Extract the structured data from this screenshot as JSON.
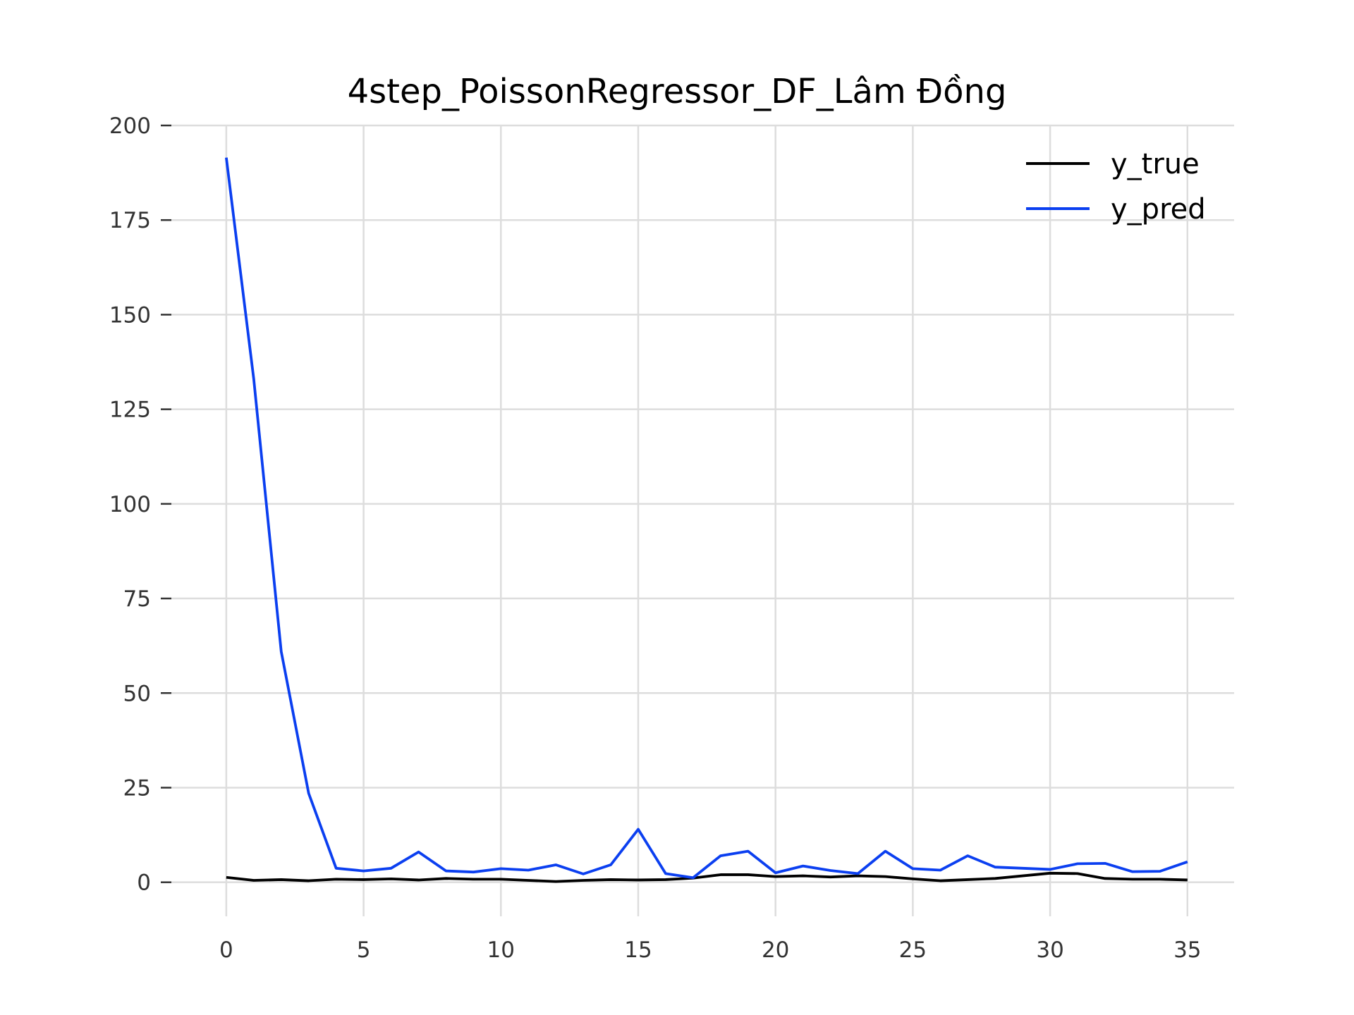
{
  "chart_data": {
    "type": "line",
    "title": "4step_PoissonRegressor_DF_Lâm Đồng",
    "xlabel": "",
    "ylabel": "",
    "xlim": [
      -2,
      36.7
    ],
    "ylim": [
      -9,
      200
    ],
    "xticks": [
      0,
      5,
      10,
      15,
      20,
      25,
      30,
      35
    ],
    "yticks": [
      0,
      25,
      50,
      75,
      100,
      125,
      150,
      175,
      200
    ],
    "grid": true,
    "legend_position": "top-right",
    "x": [
      0,
      1,
      2,
      3,
      4,
      5,
      6,
      7,
      8,
      9,
      10,
      11,
      12,
      13,
      14,
      15,
      16,
      17,
      18,
      19,
      20,
      21,
      22,
      23,
      24,
      25,
      26,
      27,
      28,
      29,
      30,
      31,
      32,
      33,
      34,
      35
    ],
    "series": [
      {
        "name": "y_true",
        "color": "#000000",
        "values": [
          1.3,
          0.5,
          0.7,
          0.4,
          0.8,
          0.7,
          0.9,
          0.6,
          1.0,
          0.8,
          0.8,
          0.5,
          0.2,
          0.5,
          0.7,
          0.6,
          0.7,
          1.1,
          2.0,
          2.0,
          1.5,
          1.7,
          1.4,
          1.7,
          1.5,
          0.9,
          0.4,
          0.7,
          1.0,
          1.7,
          2.4,
          2.3,
          1.0,
          0.8,
          0.8,
          0.6
        ]
      },
      {
        "name": "y_pred",
        "color": "#0b3ff0",
        "values": [
          191.5,
          133,
          61,
          23.5,
          3.7,
          3.0,
          3.7,
          8.0,
          3.0,
          2.7,
          3.6,
          3.2,
          4.6,
          2.2,
          4.6,
          14.0,
          2.3,
          1.2,
          7.0,
          8.2,
          2.5,
          4.3,
          3.1,
          2.3,
          8.2,
          3.6,
          3.2,
          7.0,
          4.0,
          3.7,
          3.4,
          4.9,
          5.0,
          2.8,
          2.9,
          5.4
        ]
      }
    ]
  }
}
